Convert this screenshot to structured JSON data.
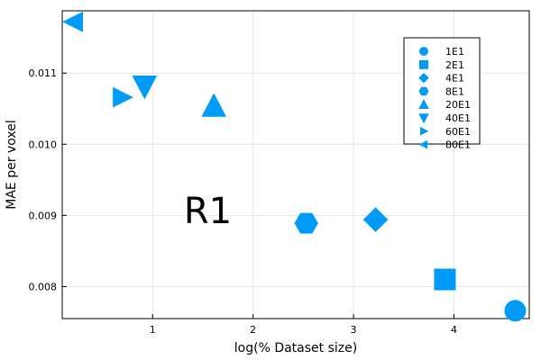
{
  "chart_data": {
    "type": "scatter",
    "xlabel": "log(% Dataset size)",
    "ylabel": "MAE per voxel",
    "xlim": [
      0.1,
      4.75
    ],
    "ylim": [
      0.00755,
      0.011875
    ],
    "xticks": [
      {
        "value": 1,
        "label": "1"
      },
      {
        "value": 2,
        "label": "2"
      },
      {
        "value": 3,
        "label": "3"
      },
      {
        "value": 4,
        "label": "4"
      }
    ],
    "yticks": [
      {
        "value": 0.008,
        "label": "0.008"
      },
      {
        "value": 0.009,
        "label": "0.009"
      },
      {
        "value": 0.01,
        "label": "0.010"
      },
      {
        "value": 0.011,
        "label": "0.011"
      }
    ],
    "grid": true,
    "legend_position": "top-right",
    "annotation": {
      "text": "R1",
      "x": 1.55,
      "y": 0.00903
    },
    "marker_color": "#009AF9",
    "series": [
      {
        "name": "1E1",
        "marker": "circle",
        "x": 4.61,
        "y": 0.00766
      },
      {
        "name": "2E1",
        "marker": "square",
        "x": 3.91,
        "y": 0.0081
      },
      {
        "name": "4E1",
        "marker": "diamond",
        "x": 3.22,
        "y": 0.00894
      },
      {
        "name": "8E1",
        "marker": "hexagon",
        "x": 2.53,
        "y": 0.00889
      },
      {
        "name": "20E1",
        "marker": "triangle-up",
        "x": 1.61,
        "y": 0.01053
      },
      {
        "name": "40E1",
        "marker": "triangle-down",
        "x": 0.92,
        "y": 0.01082
      },
      {
        "name": "60E1",
        "marker": "triangle-right",
        "x": 0.69,
        "y": 0.01066
      },
      {
        "name": "80E1",
        "marker": "triangle-left",
        "x": 0.22,
        "y": 0.01172
      }
    ]
  }
}
